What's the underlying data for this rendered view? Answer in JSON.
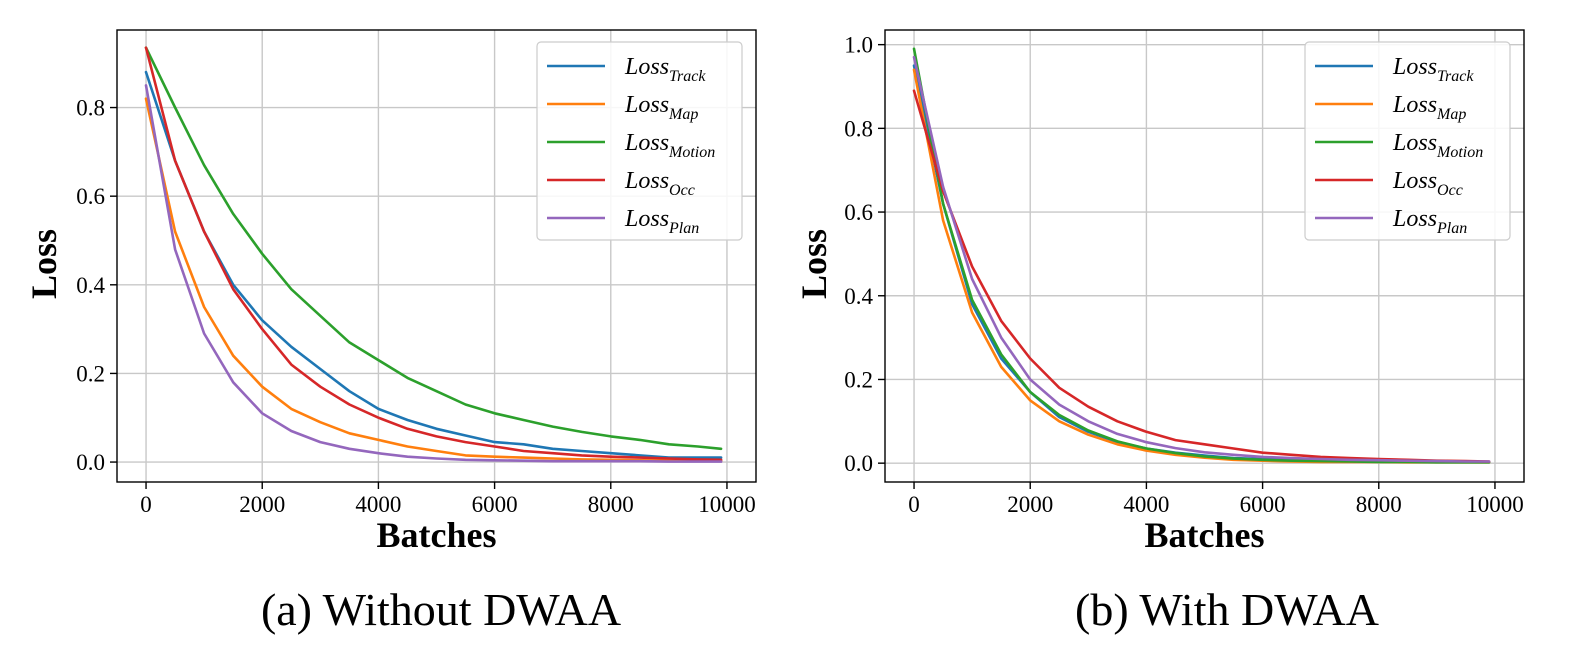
{
  "chart_data": [
    {
      "type": "line",
      "caption": "(a) Without DWAA",
      "xlabel": "Batches",
      "ylabel": "Loss",
      "xlim": [
        -500,
        10500
      ],
      "ylim": [
        -0.045,
        0.975
      ],
      "x_ticks": [
        0,
        2000,
        4000,
        6000,
        8000,
        10000
      ],
      "x_tick_labels": [
        "0",
        "2000",
        "4000",
        "6000",
        "8000",
        "10000"
      ],
      "y_ticks": [
        0.0,
        0.2,
        0.4,
        0.6,
        0.8
      ],
      "y_tick_labels": [
        "0.0",
        "0.2",
        "0.4",
        "0.6",
        "0.8"
      ],
      "grid": true,
      "legend_position": "top-right",
      "x": [
        0,
        500,
        1000,
        1500,
        2000,
        2500,
        3000,
        3500,
        4000,
        4500,
        5000,
        5500,
        6000,
        6500,
        7000,
        7500,
        8000,
        8500,
        9000,
        9500,
        9900
      ],
      "series": [
        {
          "name": "Loss",
          "subscript": "Track",
          "color": "#1f77b4",
          "values": [
            0.88,
            0.68,
            0.52,
            0.4,
            0.32,
            0.26,
            0.21,
            0.16,
            0.12,
            0.095,
            0.075,
            0.06,
            0.045,
            0.04,
            0.03,
            0.025,
            0.02,
            0.015,
            0.01,
            0.01,
            0.01
          ]
        },
        {
          "name": "Loss",
          "subscript": "Map",
          "color": "#ff7f0e",
          "values": [
            0.82,
            0.52,
            0.35,
            0.24,
            0.17,
            0.12,
            0.09,
            0.065,
            0.05,
            0.035,
            0.025,
            0.015,
            0.012,
            0.01,
            0.008,
            0.006,
            0.005,
            0.004,
            0.003,
            0.003,
            0.003
          ]
        },
        {
          "name": "Loss",
          "subscript": "Motion",
          "color": "#2ca02c",
          "values": [
            0.935,
            0.8,
            0.67,
            0.56,
            0.47,
            0.39,
            0.33,
            0.27,
            0.23,
            0.19,
            0.16,
            0.13,
            0.11,
            0.095,
            0.08,
            0.068,
            0.058,
            0.05,
            0.04,
            0.035,
            0.03
          ]
        },
        {
          "name": "Loss",
          "subscript": "Occ",
          "color": "#d62728",
          "values": [
            0.935,
            0.68,
            0.52,
            0.39,
            0.3,
            0.22,
            0.17,
            0.13,
            0.1,
            0.075,
            0.058,
            0.045,
            0.035,
            0.025,
            0.02,
            0.015,
            0.012,
            0.01,
            0.008,
            0.006,
            0.005
          ]
        },
        {
          "name": "Loss",
          "subscript": "Plan",
          "color": "#9467bd",
          "values": [
            0.85,
            0.48,
            0.29,
            0.18,
            0.11,
            0.07,
            0.045,
            0.03,
            0.02,
            0.012,
            0.008,
            0.005,
            0.004,
            0.003,
            0.002,
            0.002,
            0.002,
            0.002,
            0.001,
            0.001,
            0.001
          ]
        }
      ]
    },
    {
      "type": "line",
      "caption": "(b) With DWAA",
      "xlabel": "Batches",
      "ylabel": "Loss",
      "xlim": [
        -500,
        10500
      ],
      "ylim": [
        -0.045,
        1.035
      ],
      "x_ticks": [
        0,
        2000,
        4000,
        6000,
        8000,
        10000
      ],
      "x_tick_labels": [
        "0",
        "2000",
        "4000",
        "6000",
        "8000",
        "10000"
      ],
      "y_ticks": [
        0.0,
        0.2,
        0.4,
        0.6,
        0.8,
        1.0
      ],
      "y_tick_labels": [
        "0.0",
        "0.2",
        "0.4",
        "0.6",
        "0.8",
        "1.0"
      ],
      "grid": true,
      "legend_position": "top-right",
      "x": [
        0,
        500,
        1000,
        1500,
        2000,
        2500,
        3000,
        3500,
        4000,
        4500,
        5000,
        5500,
        6000,
        6500,
        7000,
        7500,
        8000,
        8500,
        9000,
        9500,
        9900
      ],
      "series": [
        {
          "name": "Loss",
          "subscript": "Track",
          "color": "#1f77b4",
          "values": [
            0.95,
            0.62,
            0.38,
            0.25,
            0.17,
            0.11,
            0.075,
            0.05,
            0.035,
            0.025,
            0.018,
            0.012,
            0.01,
            0.008,
            0.006,
            0.005,
            0.005,
            0.004,
            0.004,
            0.003,
            0.003
          ]
        },
        {
          "name": "Loss",
          "subscript": "Map",
          "color": "#ff7f0e",
          "values": [
            0.94,
            0.58,
            0.36,
            0.23,
            0.15,
            0.1,
            0.068,
            0.045,
            0.03,
            0.02,
            0.013,
            0.008,
            0.006,
            0.004,
            0.003,
            0.003,
            0.003,
            0.002,
            0.002,
            0.002,
            0.002
          ]
        },
        {
          "name": "Loss",
          "subscript": "Motion",
          "color": "#2ca02c",
          "values": [
            0.99,
            0.62,
            0.39,
            0.26,
            0.17,
            0.115,
            0.078,
            0.052,
            0.035,
            0.024,
            0.016,
            0.011,
            0.008,
            0.006,
            0.005,
            0.004,
            0.003,
            0.003,
            0.002,
            0.002,
            0.002
          ]
        },
        {
          "name": "Loss",
          "subscript": "Occ",
          "color": "#d62728",
          "values": [
            0.89,
            0.65,
            0.47,
            0.34,
            0.25,
            0.18,
            0.135,
            0.1,
            0.075,
            0.055,
            0.045,
            0.035,
            0.025,
            0.02,
            0.015,
            0.012,
            0.01,
            0.008,
            0.006,
            0.005,
            0.004
          ]
        },
        {
          "name": "Loss",
          "subscript": "Plan",
          "color": "#9467bd",
          "values": [
            0.97,
            0.66,
            0.44,
            0.3,
            0.2,
            0.14,
            0.1,
            0.07,
            0.05,
            0.036,
            0.026,
            0.02,
            0.015,
            0.012,
            0.01,
            0.008,
            0.007,
            0.006,
            0.005,
            0.004,
            0.004
          ]
        }
      ]
    }
  ]
}
